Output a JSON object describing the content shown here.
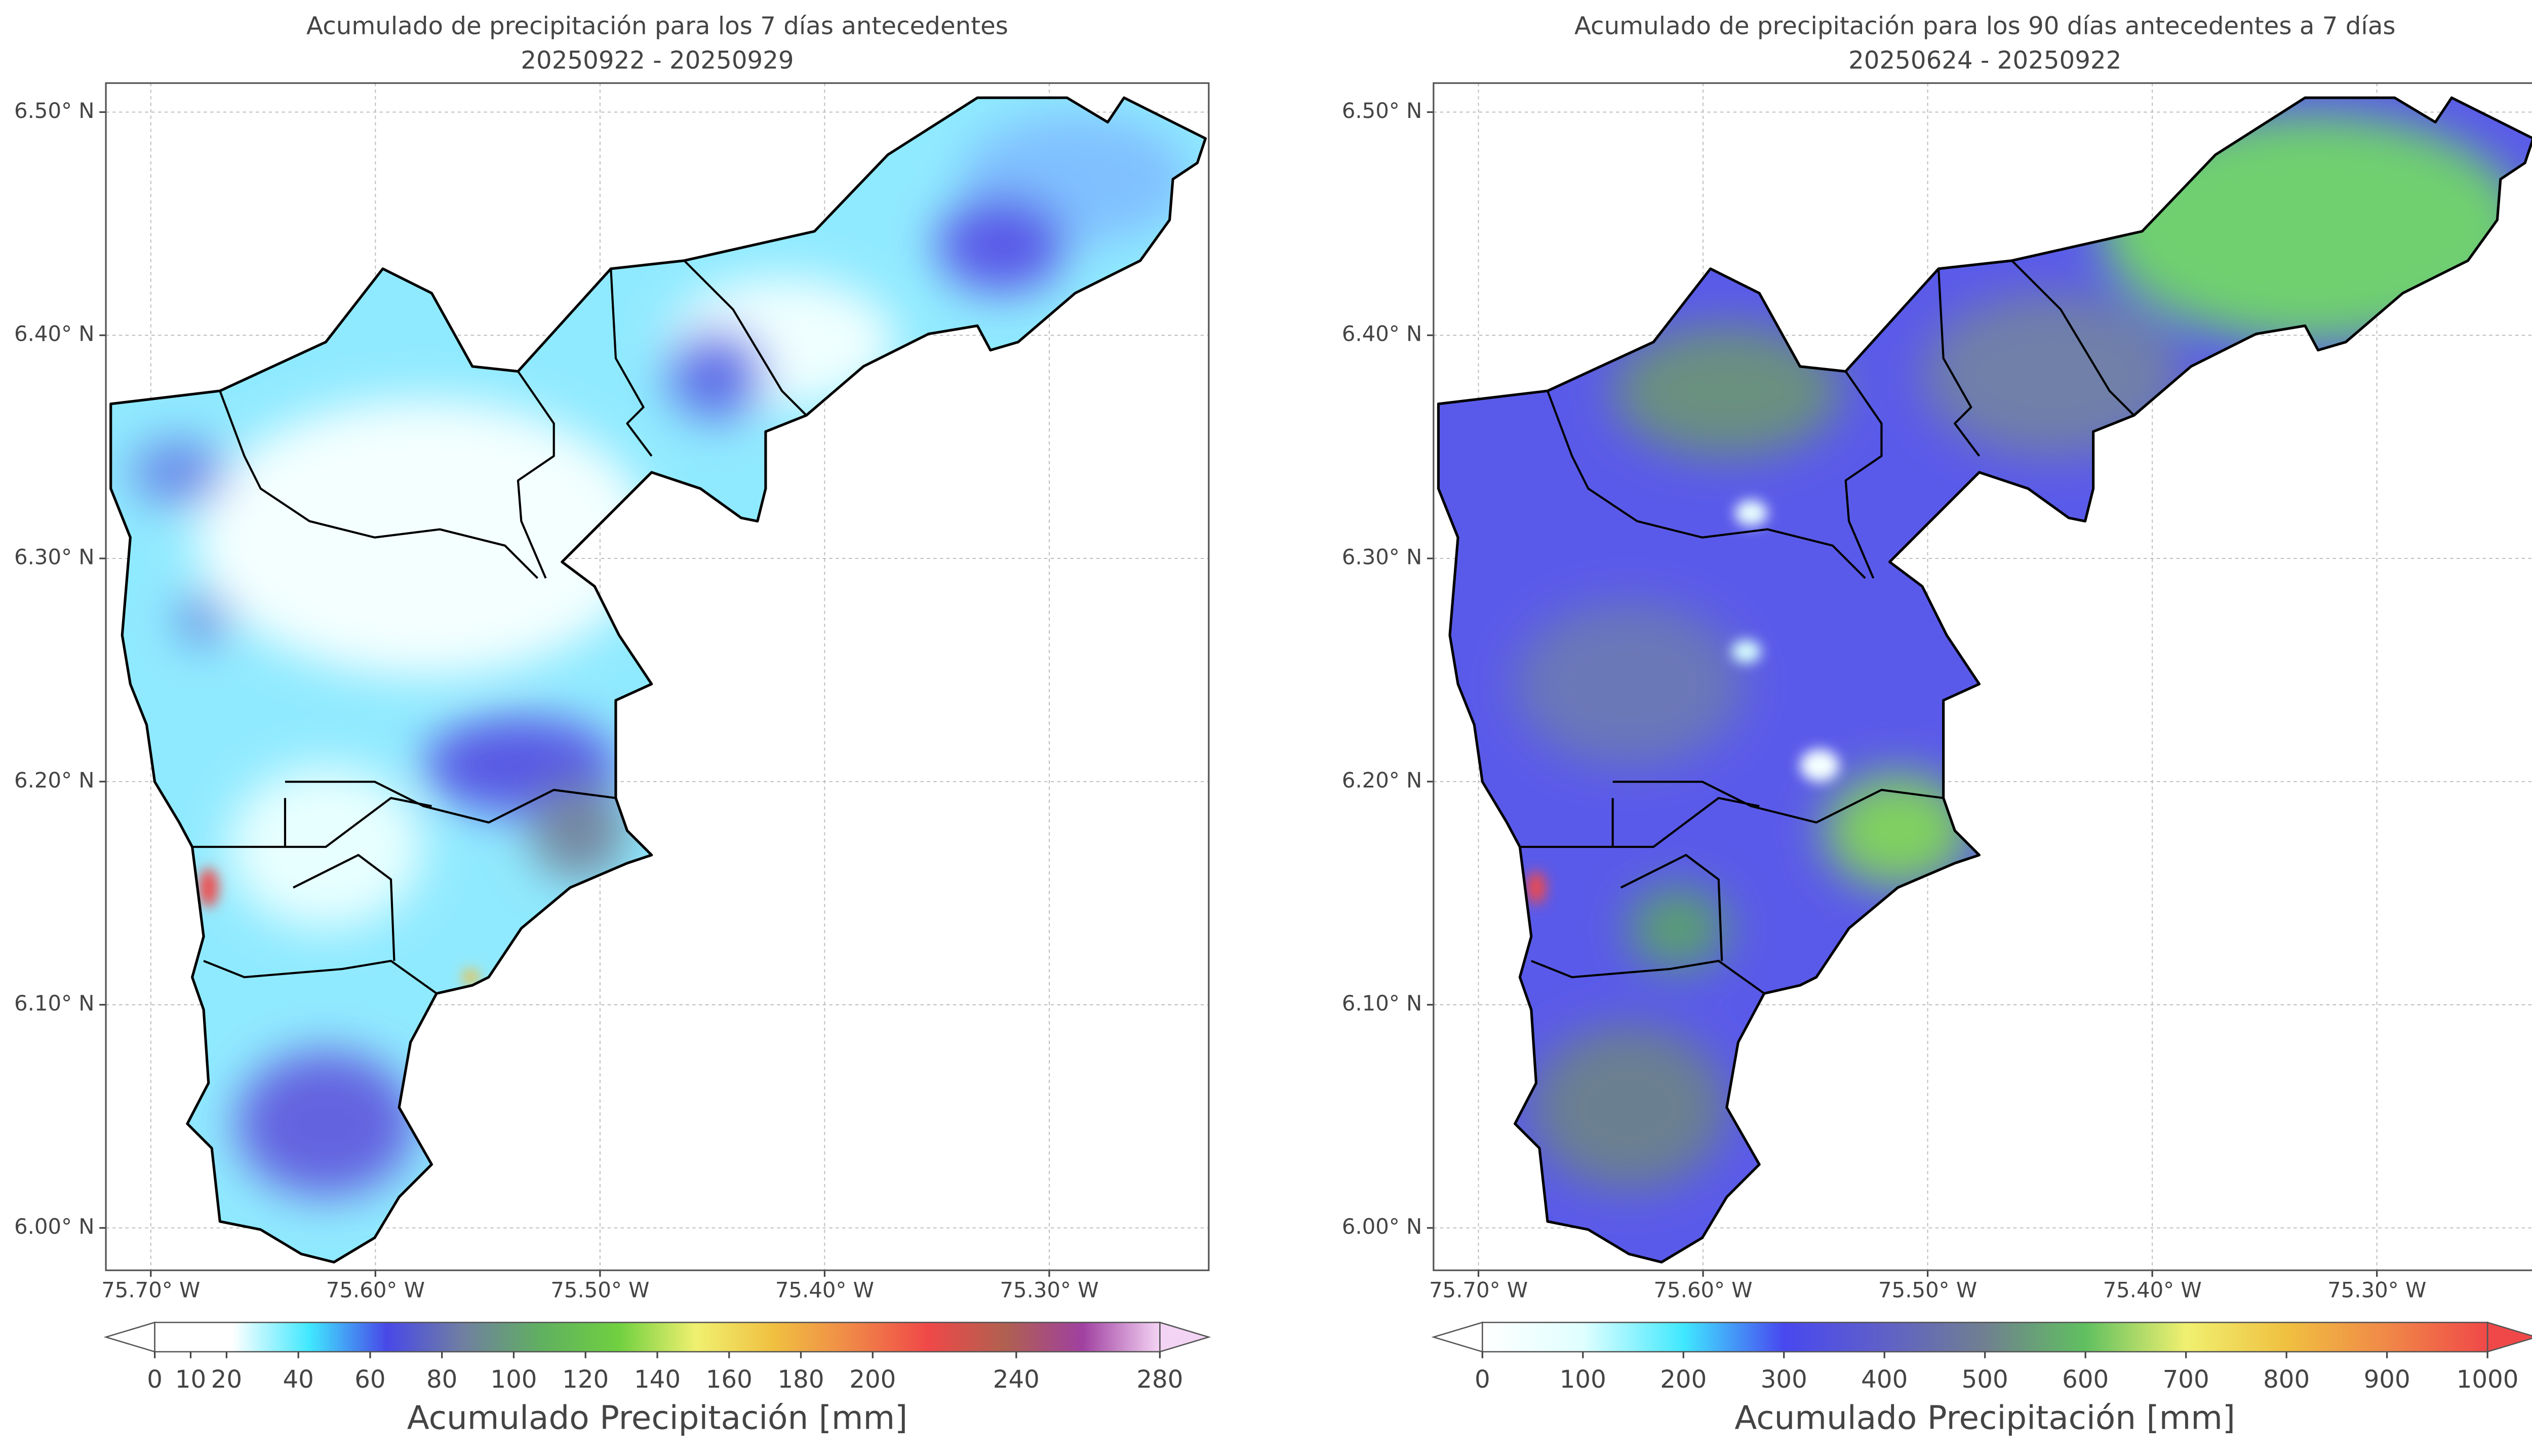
{
  "panels": [
    {
      "title": "Acumulado de precipitación para los 7 días antecedentes",
      "subtitle": "20250922 - 20250929",
      "xlim": [
        -75.72,
        -75.229
      ],
      "ylim": [
        5.981,
        6.513
      ],
      "xticks": [
        {
          "value": -75.7,
          "label": "75.70° W"
        },
        {
          "value": -75.6,
          "label": "75.60° W"
        },
        {
          "value": -75.5,
          "label": "75.50° W"
        },
        {
          "value": -75.4,
          "label": "75.40° W"
        },
        {
          "value": -75.3,
          "label": "75.30° W"
        }
      ],
      "yticks": [
        {
          "value": 6.0,
          "label": "6.00° N"
        },
        {
          "value": 6.1,
          "label": "6.10° N"
        },
        {
          "value": 6.2,
          "label": "6.20° N"
        },
        {
          "value": 6.3,
          "label": "6.30° N"
        },
        {
          "value": 6.4,
          "label": "6.40° N"
        },
        {
          "value": 6.5,
          "label": "6.50° N"
        }
      ],
      "colorbar": {
        "label": "Acumulado Precipitación [mm]",
        "lim": [
          0,
          280
        ],
        "ticks": [
          0,
          10,
          20,
          40,
          60,
          80,
          100,
          120,
          140,
          160,
          180,
          200,
          240,
          280
        ],
        "colors": [
          "#ffffff",
          "#ffffff",
          "#40e8ff",
          "#4848e8",
          "#7080a0",
          "#60b060",
          "#70d040",
          "#f0f070",
          "#f0c040",
          "#f08848",
          "#f04848",
          "#b06050",
          "#a040a0",
          "#f4d4f4"
        ]
      }
    },
    {
      "title": "Acumulado de precipitación para los 90 días antecedentes a 7 días",
      "subtitle": "20250624 - 20250922",
      "xlim": [
        -75.72,
        -75.229
      ],
      "ylim": [
        5.981,
        6.513
      ],
      "xticks": [
        {
          "value": -75.7,
          "label": "75.70° W"
        },
        {
          "value": -75.6,
          "label": "75.60° W"
        },
        {
          "value": -75.5,
          "label": "75.50° W"
        },
        {
          "value": -75.4,
          "label": "75.40° W"
        },
        {
          "value": -75.3,
          "label": "75.30° W"
        }
      ],
      "yticks": [
        {
          "value": 6.0,
          "label": "6.00° N"
        },
        {
          "value": 6.1,
          "label": "6.10° N"
        },
        {
          "value": 6.2,
          "label": "6.20° N"
        },
        {
          "value": 6.3,
          "label": "6.30° N"
        },
        {
          "value": 6.4,
          "label": "6.40° N"
        },
        {
          "value": 6.5,
          "label": "6.50° N"
        }
      ],
      "colorbar": {
        "label": "Acumulado Precipitación [mm]",
        "lim": [
          0,
          1000
        ],
        "ticks": [
          0,
          100,
          200,
          300,
          400,
          500,
          600,
          700,
          800,
          900,
          1000
        ],
        "colors": [
          "#ffffff",
          "#e0ffff",
          "#40e8ff",
          "#4848f0",
          "#6060c8",
          "#708090",
          "#60c060",
          "#f0f070",
          "#f0c040",
          "#f08848",
          "#f04848"
        ]
      }
    }
  ]
}
